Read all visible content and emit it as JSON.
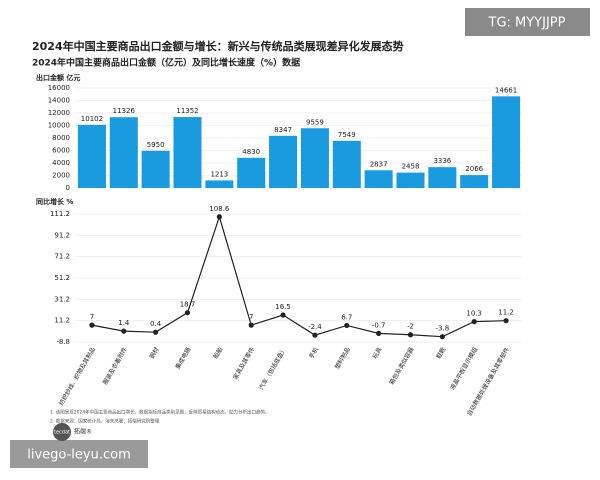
{
  "title": "2024年中国主要商品出口金额与增长：新兴与传统品类展现差异化发展态势",
  "subtitle": "2024年中国主要商品出口金额（亿元）及同比增长速度（%）数据",
  "watermark_top": "TG: MYYJJPP",
  "watermark_bottom": "livego-leyu.com",
  "notes": [
    "1. 该图呈现2024年中国主要商品出口增长，数据指标商品类别见图，反映贸易结构动态，助力分析出口趋势。",
    "2. 数据来源：国家统计局、海关总署；拓端研究院整理"
  ],
  "logo": [
    "tecdat",
    "拓端®"
  ],
  "chart_data": [
    {
      "type": "bar",
      "y_label": "出口金额 亿元",
      "color": "#1a9be0",
      "grid": true,
      "values": [
        10102,
        11326,
        5950,
        11352,
        1213,
        4830,
        8347,
        9559,
        7549,
        2837,
        2458,
        3336,
        2066,
        14661
      ],
      "ylim": [
        0,
        16000
      ],
      "yticks": [
        0,
        2000,
        4000,
        6000,
        8000,
        10000,
        12000,
        14000,
        16000
      ]
    },
    {
      "type": "line",
      "y_label": "同比增长 %",
      "color": "#222222",
      "grid": true,
      "categories": [
        "纺织纱线、织物及其制品",
        "服装及衣着附件",
        "钢材",
        "集成电路",
        "船舶",
        "家具及其零件",
        "汽车（包括底盘）",
        "手机",
        "塑料制品",
        "玩具",
        "箱包及类似容器",
        "鞋靴",
        "液晶平板显示模组",
        "自动数据处理设备及其零部件"
      ],
      "values": [
        7,
        1.4,
        0.4,
        18.7,
        108.6,
        7,
        16.5,
        -2.4,
        6.7,
        -0.7,
        -2,
        -3.8,
        10.3,
        11.2
      ],
      "ylim": [
        -8.8,
        111.2
      ],
      "yticks": [
        -8.8,
        11.2,
        31.2,
        51.2,
        71.2,
        91.2,
        111.2
      ]
    }
  ]
}
